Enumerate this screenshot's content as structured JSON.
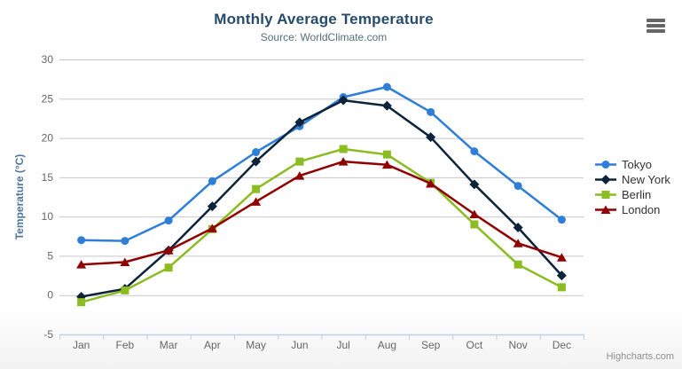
{
  "credits": {
    "label": "Highcharts.com"
  },
  "export_menu": {
    "icon": "hamburger-menu-icon",
    "tooltip": "Chart context menu"
  },
  "ui_colors": {
    "title": "#274b6d",
    "subtitle": "#55707e",
    "axis_labels": "#666666",
    "y_axis_title": "#4d759e",
    "gridline": "#c8c8c8",
    "axis_line": "#c0d0e0",
    "legend_text": "#333333",
    "credits": "#8f8f8f",
    "menu_icon": "#666666"
  },
  "chart_data": {
    "type": "line",
    "title": "Monthly Average Temperature",
    "subtitle": "Source: WorldClimate.com",
    "xlabel": "",
    "ylabel": "Temperature (°C)",
    "categories": [
      "Jan",
      "Feb",
      "Mar",
      "Apr",
      "May",
      "Jun",
      "Jul",
      "Aug",
      "Sep",
      "Oct",
      "Nov",
      "Dec"
    ],
    "ylim": [
      -5,
      30
    ],
    "ytick_step": 5,
    "yticks": [
      -5,
      0,
      5,
      10,
      15,
      20,
      25,
      30
    ],
    "grid": true,
    "legend_position": "right",
    "series": [
      {
        "name": "Tokyo",
        "color": "#2f7ed8",
        "marker": "circle",
        "values": [
          7.0,
          6.9,
          9.5,
          14.5,
          18.2,
          21.5,
          25.2,
          26.5,
          23.3,
          18.3,
          13.9,
          9.6
        ]
      },
      {
        "name": "New York",
        "color": "#0d233a",
        "marker": "diamond",
        "values": [
          -0.2,
          0.8,
          5.7,
          11.3,
          17.0,
          22.0,
          24.8,
          24.1,
          20.1,
          14.1,
          8.6,
          2.5
        ]
      },
      {
        "name": "Berlin",
        "color": "#8bbc21",
        "marker": "square",
        "values": [
          -0.9,
          0.6,
          3.5,
          8.4,
          13.5,
          17.0,
          18.6,
          17.9,
          14.3,
          9.0,
          3.9,
          1.0
        ]
      },
      {
        "name": "London",
        "color": "#910000",
        "marker": "triangle",
        "values": [
          3.9,
          4.2,
          5.7,
          8.5,
          11.9,
          15.2,
          17.0,
          16.6,
          14.2,
          10.3,
          6.6,
          4.8
        ]
      }
    ]
  }
}
